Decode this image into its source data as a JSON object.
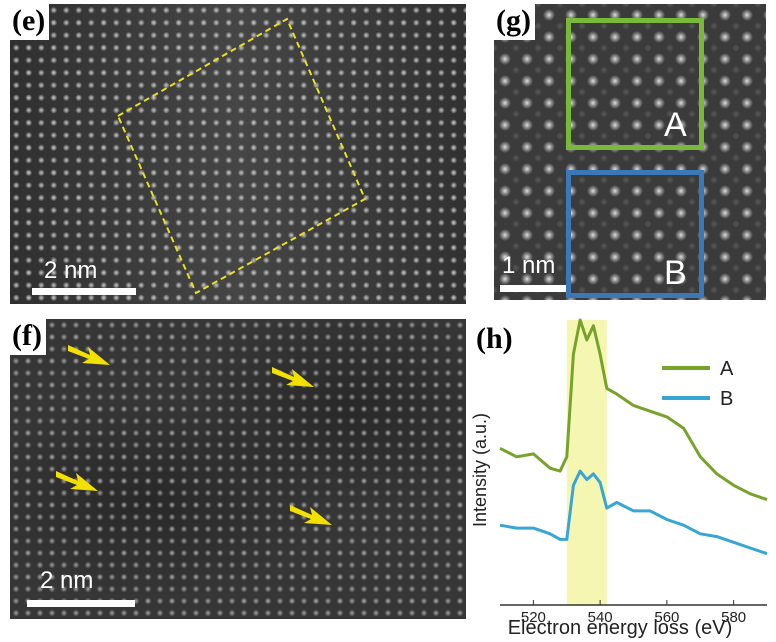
{
  "panels": {
    "e": {
      "label": "(e)",
      "scale_bar": "2 nm"
    },
    "f": {
      "label": "(f)",
      "scale_bar": "2 nm"
    },
    "g": {
      "label": "(g)",
      "scale_bar": "1 nm",
      "box_a": "A",
      "box_b": "B"
    },
    "h": {
      "label": "(h)"
    }
  },
  "colors": {
    "dashed_box": "#e8e020",
    "arrow": "#f2e000",
    "box_a": "#7ab83a",
    "box_b": "#3a78b8",
    "series_a": "#77a32a",
    "series_b": "#38a6d4",
    "highlight": "#f4f4a0"
  },
  "chart_data": {
    "type": "line",
    "title": "",
    "xlabel": "Electron energy loss (eV)",
    "ylabel": "Intensity (a.u.)",
    "xlim": [
      510,
      590
    ],
    "x_ticks": [
      520,
      540,
      560,
      580
    ],
    "highlight_range": [
      530,
      542
    ],
    "legend_position": "top-right",
    "x": [
      510,
      515,
      520,
      525,
      528,
      530,
      532,
      534,
      536,
      538,
      540,
      542,
      545,
      550,
      555,
      560,
      565,
      570,
      575,
      580,
      585,
      590
    ],
    "series": [
      {
        "name": "A",
        "values": [
          0.55,
          0.52,
          0.53,
          0.48,
          0.47,
          0.52,
          0.88,
          1.0,
          0.93,
          0.98,
          0.88,
          0.76,
          0.74,
          0.7,
          0.68,
          0.66,
          0.62,
          0.52,
          0.46,
          0.42,
          0.39,
          0.37
        ]
      },
      {
        "name": "B",
        "values": [
          0.28,
          0.27,
          0.27,
          0.25,
          0.23,
          0.23,
          0.42,
          0.47,
          0.44,
          0.46,
          0.43,
          0.34,
          0.36,
          0.33,
          0.33,
          0.3,
          0.28,
          0.25,
          0.24,
          0.22,
          0.2,
          0.18
        ]
      }
    ]
  }
}
